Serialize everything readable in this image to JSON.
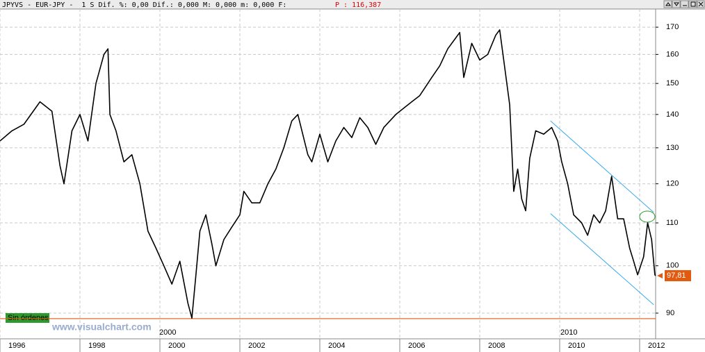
{
  "chart_data": {
    "type": "line",
    "title": "JPYVS - EUR-JPY -  1 S Dif. %: 0,00 Dif.: 0,000 M: 0,000 m: 0,000 F:",
    "price_label": "P : 116,387",
    "watermark": "www.visualchart.com",
    "order_label": "Sin órdenes",
    "order_line": 88.9,
    "period_labels": [
      "2000",
      "2010"
    ],
    "last_price": {
      "value": 97.81,
      "label": "97,81"
    },
    "log_scale": true,
    "grid": true,
    "xlim": [
      1996,
      2012.4
    ],
    "xticks": [
      1996,
      1998,
      2000,
      2002,
      2004,
      2006,
      2008,
      2010,
      2012
    ],
    "ylim": [
      85,
      177
    ],
    "yticks": [
      90,
      100,
      110,
      120,
      130,
      140,
      150,
      160,
      170
    ],
    "series": [
      {
        "name": "EUR-JPY",
        "color": "#000000",
        "x": [
          1996.0,
          1996.3,
          1996.6,
          1997.0,
          1997.3,
          1997.5,
          1997.6,
          1997.8,
          1998.0,
          1998.2,
          1998.4,
          1998.6,
          1998.7,
          1998.75,
          1998.9,
          1999.1,
          1999.3,
          1999.5,
          1999.7,
          1999.9,
          2000.1,
          2000.3,
          2000.5,
          2000.7,
          2000.8,
          2000.9,
          2001.0,
          2001.15,
          2001.3,
          2001.4,
          2001.6,
          2001.8,
          2002.0,
          2002.1,
          2002.3,
          2002.5,
          2002.7,
          2002.9,
          2003.1,
          2003.3,
          2003.45,
          2003.7,
          2003.8,
          2004.0,
          2004.2,
          2004.4,
          2004.6,
          2004.8,
          2005.0,
          2005.2,
          2005.4,
          2005.6,
          2005.9,
          2006.1,
          2006.3,
          2006.5,
          2006.8,
          2007.0,
          2007.2,
          2007.4,
          2007.5,
          2007.6,
          2007.8,
          2008.0,
          2008.2,
          2008.4,
          2008.5,
          2008.6,
          2008.75,
          2008.85,
          2008.95,
          2009.05,
          2009.15,
          2009.25,
          2009.4,
          2009.6,
          2009.8,
          2009.95,
          2010.05,
          2010.2,
          2010.35,
          2010.55,
          2010.7,
          2010.85,
          2011.0,
          2011.15,
          2011.3,
          2011.45,
          2011.6,
          2011.75,
          2011.85,
          2011.95,
          2012.1,
          2012.2,
          2012.3,
          2012.38,
          2012.4
        ],
        "values": [
          132,
          135,
          137,
          144,
          141,
          125,
          120,
          135,
          140,
          132,
          150,
          160,
          162,
          140,
          135,
          126,
          128,
          120,
          108,
          104,
          100,
          96,
          101,
          92,
          89,
          98,
          108,
          112,
          105,
          100,
          106,
          109,
          112,
          118,
          115,
          115,
          120,
          124,
          130,
          138,
          140,
          128,
          126,
          134,
          126,
          132,
          136,
          133,
          139,
          136,
          131,
          136,
          140,
          142,
          144,
          146,
          152,
          156,
          162,
          166,
          168,
          152,
          164,
          158,
          160,
          167,
          169,
          158,
          143,
          118,
          124,
          116,
          113,
          127,
          135,
          134,
          136,
          132,
          126,
          120,
          112,
          110,
          107,
          112,
          110,
          113,
          122,
          111,
          111,
          104,
          101,
          98,
          102,
          110,
          106,
          98,
          97.81
        ]
      }
    ],
    "trend_lines": [
      {
        "color": "#33aaee",
        "x": [
          2009.77,
          2012.35
        ],
        "values": [
          138,
          112.6
        ]
      },
      {
        "color": "#33aaee",
        "x": [
          2009.77,
          2012.35
        ],
        "values": [
          112.3,
          91.7
        ]
      }
    ]
  }
}
